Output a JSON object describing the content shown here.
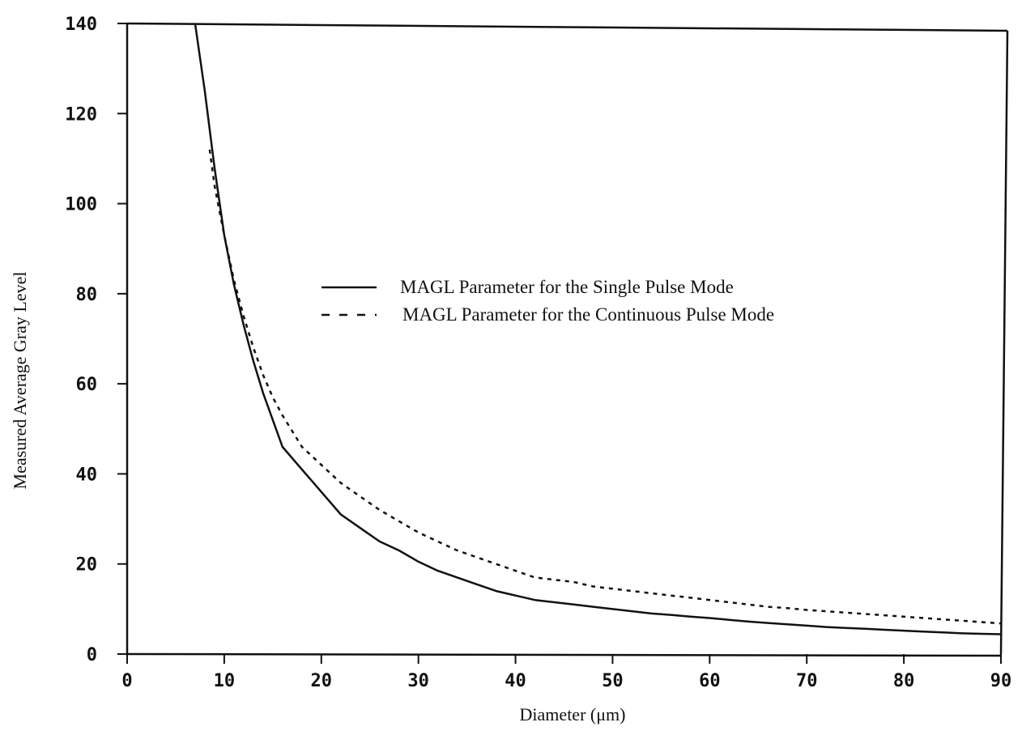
{
  "chart_data": {
    "type": "line",
    "title": "",
    "xlabel": "Diameter  (μm)",
    "ylabel": "Measured Average Gray Level",
    "xlim": [
      0,
      90
    ],
    "ylim": [
      0,
      140
    ],
    "xticks": [
      "0",
      "10",
      "20",
      "30",
      "40",
      "50",
      "60",
      "70",
      "80",
      "90"
    ],
    "yticks": [
      "0",
      "20",
      "40",
      "60",
      "80",
      "100",
      "120",
      "140"
    ],
    "grid": false,
    "legend_position": "center-right",
    "series": [
      {
        "name": "MAGL Parameter for the Single Pulse Mode",
        "style": "solid",
        "color": "#111111",
        "x": [
          7,
          8,
          9,
          10,
          11,
          12,
          13,
          14,
          15,
          16,
          18,
          20,
          22,
          24,
          26,
          28,
          30,
          32,
          34,
          36,
          38,
          40,
          42,
          44,
          46,
          48,
          50,
          52,
          54,
          56,
          58,
          60,
          62,
          64,
          66,
          68,
          70,
          72,
          74,
          76,
          78,
          80,
          82,
          84,
          86,
          88,
          90
        ],
        "y": [
          140,
          125,
          108,
          93,
          82,
          73,
          65,
          58,
          52,
          46,
          41,
          36,
          31,
          28,
          25,
          23,
          20.5,
          18.5,
          17,
          15.5,
          14,
          13,
          12,
          11.5,
          11,
          10.5,
          10,
          9.5,
          9,
          8.7,
          8.3,
          8,
          7.6,
          7.2,
          6.9,
          6.6,
          6.3,
          6,
          5.8,
          5.6,
          5.4,
          5.2,
          5.0,
          4.8,
          4.6,
          4.5,
          4.4
        ]
      },
      {
        "name": "MAGL Parameter for the Continuous Pulse Mode",
        "style": "dashed",
        "color": "#111111",
        "x": [
          8.5,
          9,
          10,
          11,
          12,
          13,
          14,
          15,
          16,
          18,
          20,
          22,
          24,
          26,
          28,
          30,
          32,
          34,
          36,
          38,
          40,
          42,
          44,
          46,
          48,
          50,
          52,
          54,
          56,
          58,
          60,
          62,
          64,
          66,
          68,
          70,
          72,
          74,
          76,
          78,
          80,
          82,
          84,
          86,
          88,
          90
        ],
        "y": [
          112,
          104,
          93,
          83,
          75,
          68,
          62,
          57,
          53,
          46,
          42,
          38,
          35,
          32,
          29.5,
          27,
          25,
          23,
          21.5,
          20,
          18.5,
          17,
          16.5,
          16,
          15,
          14.5,
          14,
          13.5,
          13,
          12.5,
          12,
          11.5,
          11,
          10.5,
          10.2,
          9.8,
          9.5,
          9.2,
          8.9,
          8.6,
          8.3,
          8.0,
          7.7,
          7.4,
          7.1,
          6.8
        ]
      }
    ]
  }
}
